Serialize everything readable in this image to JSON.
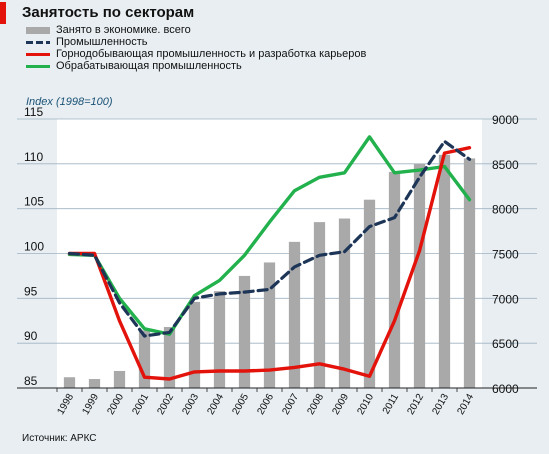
{
  "title": "Занятость по секторам",
  "index_label": "Index (1998=100)",
  "source": "Источник: АРКС",
  "colors": {
    "bars": "#a9a9a9",
    "industry": "#1d3557",
    "mining": "#e3120b",
    "manufacturing": "#22b14c",
    "accent": "#e3120b"
  },
  "legend": [
    {
      "label": "Занято в экономике. всего",
      "kind": "bar"
    },
    {
      "label": "Промышленность",
      "kind": "dash"
    },
    {
      "label": "Горнодобывающая  промышленность и разработка карьеров",
      "kind": "line-red"
    },
    {
      "label": "Обрабатывающая  промышленность",
      "kind": "line-green"
    }
  ],
  "chart_data": {
    "type": "bar+line",
    "categories": [
      "1998",
      "1999",
      "2000",
      "2001",
      "2002",
      "2003",
      "2004",
      "2005",
      "2006",
      "2007",
      "2008",
      "2009",
      "2010",
      "2011",
      "2012",
      "2013",
      "2014"
    ],
    "left_axis": {
      "ylim": [
        85,
        115
      ],
      "ticks": [
        "85",
        "90",
        "95",
        "100",
        "105",
        "110",
        "115"
      ]
    },
    "right_axis": {
      "ylim": [
        6000,
        9000
      ],
      "ticks": [
        "6000",
        "6500",
        "7000",
        "7500",
        "8000",
        "8500",
        "9000"
      ]
    },
    "bars": {
      "name": "Занято в экономике. всего",
      "axis": "right",
      "values": [
        6120,
        6100,
        6190,
        6640,
        6680,
        6960,
        7080,
        7250,
        7400,
        7630,
        7850,
        7890,
        8100,
        8410,
        8500,
        8600,
        8560
      ]
    },
    "series": [
      {
        "name": "Промышленность",
        "axis": "left",
        "style": "dash",
        "values": [
          100,
          99.8,
          94.5,
          90.8,
          91.2,
          95.0,
          95.5,
          95.7,
          96.0,
          98.5,
          99.8,
          100.2,
          103.0,
          104.0,
          108.5,
          112.5,
          110.5
        ]
      },
      {
        "name": "Горнодобывающая  промышленность и разработка карьеров",
        "axis": "left",
        "style": "line-red",
        "values": [
          100,
          100,
          92.5,
          86.2,
          86.0,
          86.8,
          86.9,
          86.9,
          87.0,
          87.3,
          87.7,
          87.1,
          86.3,
          92.5,
          100.3,
          111.2,
          111.8
        ]
      },
      {
        "name": "Обрабатывающая  промышленность",
        "axis": "left",
        "style": "line-green",
        "values": [
          99.9,
          99.8,
          95.0,
          91.6,
          91.0,
          95.3,
          97.0,
          99.8,
          103.5,
          107.0,
          108.5,
          109.0,
          113.0,
          109.0,
          109.3,
          109.7,
          106.0
        ]
      }
    ]
  }
}
